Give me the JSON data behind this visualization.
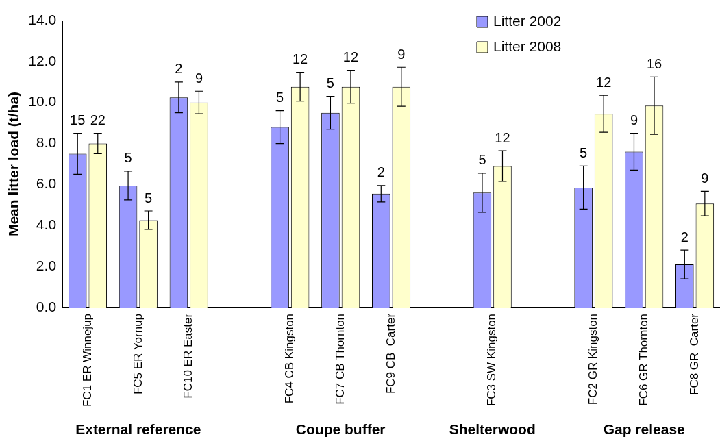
{
  "chart_data": {
    "type": "bar",
    "ylabel": "Mean litter load (t/ha)",
    "categories": [
      "FC1 ER Winnejup",
      "FC5 ER Yornup",
      "FC10 ER Easter",
      null,
      "FC4 CB Kingston",
      "FC7 CB Thornton",
      "FC9 CB  Carter",
      null,
      "FC3 SW Kingston",
      null,
      "FC2 GR Kingston",
      "FC6 GR Thornton",
      "FC8 GR  Carter"
    ],
    "series": [
      {
        "name": "Litter 2002",
        "color": "#9999ff",
        "values": [
          7.5,
          5.95,
          10.25,
          null,
          8.8,
          9.5,
          5.55,
          null,
          5.6,
          null,
          5.85,
          7.6,
          2.1
        ],
        "errors": [
          1.0,
          0.7,
          0.75,
          null,
          0.8,
          0.8,
          0.4,
          null,
          0.95,
          null,
          1.05,
          0.9,
          0.7
        ]
      },
      {
        "name": "Litter 2008",
        "color": "#ffffcc",
        "values": [
          8.0,
          4.26,
          10.0,
          null,
          10.77,
          10.77,
          10.77,
          null,
          6.9,
          null,
          9.45,
          9.85,
          5.07
        ],
        "errors": [
          0.5,
          0.45,
          0.55,
          null,
          0.7,
          0.8,
          0.95,
          null,
          0.75,
          null,
          0.9,
          1.4,
          0.6
        ]
      }
    ],
    "ylim": [
      0,
      14
    ],
    "yticks": [
      {
        "value": 0,
        "label": "0.0"
      },
      {
        "value": 2,
        "label": "2.0"
      },
      {
        "value": 4,
        "label": "4.0"
      },
      {
        "value": 6,
        "label": "6.0"
      },
      {
        "value": 8,
        "label": "8.0"
      },
      {
        "value": 10,
        "label": "10.0"
      },
      {
        "value": 12,
        "label": "12.0"
      },
      {
        "value": 14,
        "label": "14.0"
      }
    ],
    "grid": false,
    "legend": "top right",
    "annotations": [
      {
        "text": "15",
        "x": "FC1 ER Winnejup",
        "y": 7.5
      },
      {
        "text": "22",
        "x": "FC1 ER Winnejup",
        "y": 8.0
      },
      {
        "text": "5",
        "x": "FC5 ER Yornup",
        "y": 4.26
      },
      {
        "text": "5",
        "x": "FC5 ER Yornup",
        "y": 5.95
      },
      {
        "text": "2",
        "x": "FC10 ER Easter",
        "y": 10.25
      },
      {
        "text": "9",
        "x": "FC10 ER Easter",
        "y": 10.0
      },
      {
        "text": "5",
        "x": "FC4 CB Kingston",
        "y": 8.8
      },
      {
        "text": "12",
        "x": "FC4 CB Kingston",
        "y": 10.77
      },
      {
        "text": "5",
        "x": "FC7 CB Thornton",
        "y": 9.5
      },
      {
        "text": "12",
        "x": "FC7 CB Thornton",
        "y": 10.77
      },
      {
        "text": "2",
        "x": "FC9 CB  Carter",
        "y": 5.55
      },
      {
        "text": "9",
        "x": "FC9 CB  Carter",
        "y": 10.77
      },
      {
        "text": "5",
        "x": "FC3 SW Kingston",
        "y": 5.6
      },
      {
        "text": "12",
        "x": "FC3 SW Kingston",
        "y": 6.9
      },
      {
        "text": "5",
        "x": "FC2 GR Kingston",
        "y": 5.85
      },
      {
        "text": "12",
        "x": "FC2 GR Kingston",
        "y": 9.45
      },
      {
        "text": "9",
        "x": "FC6 GR Thornton",
        "y": 7.6
      },
      {
        "text": "16",
        "x": "FC6 GR Thornton",
        "y": 9.85
      },
      {
        "text": "2",
        "x": "FC8 GR  Carter",
        "y": 2.1
      },
      {
        "text": "9",
        "x": "FC8 GR  Carter",
        "y": 5.07
      },
      "External reference",
      "Coupe buffer",
      "Shelterwood",
      "Gap release"
    ]
  }
}
